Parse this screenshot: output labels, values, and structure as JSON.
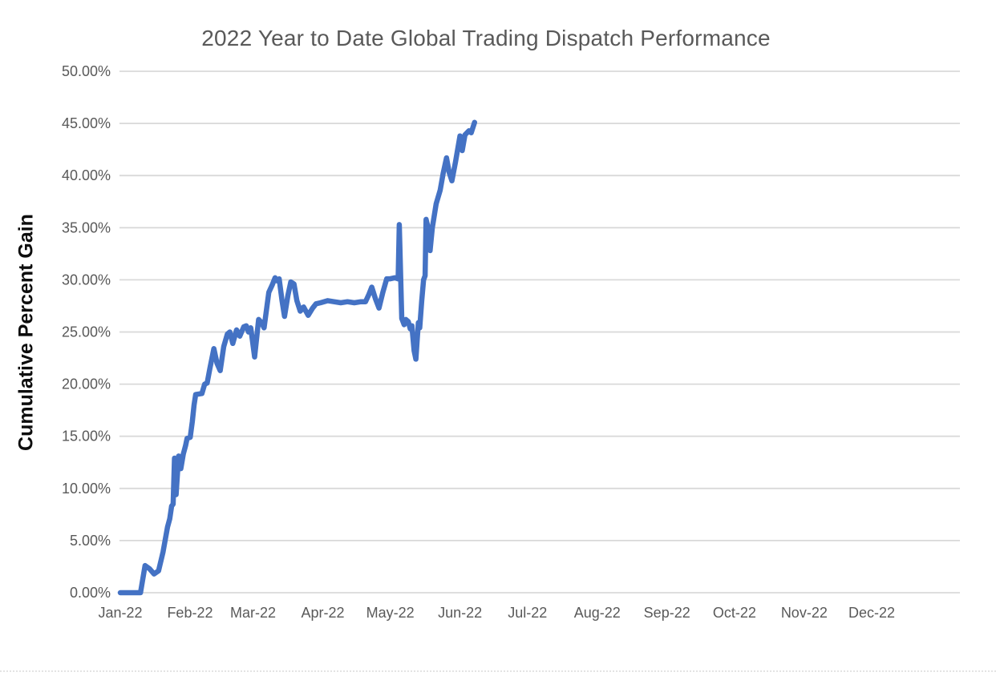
{
  "chart_data": {
    "type": "line",
    "title": "2022 Year to Date Global Trading Dispatch Performance",
    "xlabel": "",
    "ylabel": "Cumulative Percent Gain",
    "x_tick_labels": [
      "Jan-22",
      "Feb-22",
      "Mar-22",
      "Apr-22",
      "May-22",
      "Jun-22",
      "Jul-22",
      "Aug-22",
      "Sep-22",
      "Oct-22",
      "Nov-22",
      "Dec-22"
    ],
    "x_tick_days": [
      0,
      31,
      59,
      90,
      120,
      151,
      181,
      212,
      243,
      273,
      304,
      334
    ],
    "y_tick_labels": [
      "0.00%",
      "5.00%",
      "10.00%",
      "15.00%",
      "20.00%",
      "25.00%",
      "30.00%",
      "35.00%",
      "40.00%",
      "45.00%",
      "50.00%"
    ],
    "y_ticks": [
      0,
      5,
      10,
      15,
      20,
      25,
      30,
      35,
      40,
      45,
      50
    ],
    "ylim": [
      0,
      50
    ],
    "xlim_days": [
      0,
      365
    ],
    "grid": "horizontal",
    "legend": "none",
    "line_color": "#4472C4",
    "grid_color": "#D9D9D9",
    "tick_label_color": "#595959",
    "title_color": "#595959",
    "axis_title_color": "#0d0d0d",
    "series": [
      {
        "x_is_day_of_year_2022": true,
        "points": [
          [
            0,
            0
          ],
          [
            9,
            0
          ],
          [
            11,
            2.6
          ],
          [
            13,
            2.3
          ],
          [
            15,
            1.8
          ],
          [
            17,
            2.1
          ],
          [
            19,
            3.9
          ],
          [
            20,
            5.1
          ],
          [
            21,
            6.3
          ],
          [
            22,
            7.1
          ],
          [
            22.8,
            8.3
          ],
          [
            23.5,
            8.5
          ],
          [
            24.1,
            12.9
          ],
          [
            24.8,
            9.4
          ],
          [
            25.9,
            13.1
          ],
          [
            26.9,
            11.9
          ],
          [
            28,
            13.3
          ],
          [
            29,
            14.1
          ],
          [
            29.7,
            14.8
          ],
          [
            31.1,
            14.9
          ],
          [
            32,
            16.4
          ],
          [
            32.8,
            18
          ],
          [
            33.5,
            19
          ],
          [
            36.3,
            19.1
          ],
          [
            37.5,
            20
          ],
          [
            38.6,
            20.1
          ],
          [
            39.8,
            21.5
          ],
          [
            41.6,
            23.4
          ],
          [
            43,
            22
          ],
          [
            44.4,
            21.3
          ],
          [
            46,
            23.6
          ],
          [
            47.6,
            24.8
          ],
          [
            48.7,
            25
          ],
          [
            50,
            23.9
          ],
          [
            51.7,
            25.2
          ],
          [
            53.1,
            24.6
          ],
          [
            54.9,
            25.5
          ],
          [
            56,
            25.6
          ],
          [
            57,
            25
          ],
          [
            58,
            25.4
          ],
          [
            59.7,
            22.6
          ],
          [
            61.5,
            26.2
          ],
          [
            62.8,
            25.9
          ],
          [
            63.9,
            25.4
          ],
          [
            66,
            28.8
          ],
          [
            67.5,
            29.5
          ],
          [
            68.8,
            30.2
          ],
          [
            69.8,
            29.9
          ],
          [
            70.6,
            30.1
          ],
          [
            71.9,
            28
          ],
          [
            73,
            26.5
          ],
          [
            74.5,
            28.5
          ],
          [
            75.8,
            29.8
          ],
          [
            77.2,
            29.6
          ],
          [
            78.5,
            28
          ],
          [
            80,
            27
          ],
          [
            81.5,
            27.4
          ],
          [
            83.5,
            26.6
          ],
          [
            85.5,
            27.3
          ],
          [
            87,
            27.7
          ],
          [
            89,
            27.8
          ],
          [
            92.2,
            28
          ],
          [
            95,
            27.9
          ],
          [
            98,
            27.8
          ],
          [
            101,
            27.9
          ],
          [
            104,
            27.8
          ],
          [
            107,
            27.9
          ],
          [
            109,
            27.9
          ],
          [
            110.5,
            28.6
          ],
          [
            111.8,
            29.3
          ],
          [
            113.4,
            28.2
          ],
          [
            115,
            27.3
          ],
          [
            116.7,
            28.8
          ],
          [
            118.4,
            30.1
          ],
          [
            120,
            30.1
          ],
          [
            122,
            30.2
          ],
          [
            123.5,
            30.1
          ],
          [
            124,
            35.3
          ],
          [
            125.1,
            26.3
          ],
          [
            126.2,
            25.7
          ],
          [
            126.9,
            26.2
          ],
          [
            128,
            26
          ],
          [
            128.9,
            25.3
          ],
          [
            129.6,
            25.6
          ],
          [
            130.6,
            23.2
          ],
          [
            131.4,
            22.4
          ],
          [
            131.9,
            24
          ],
          [
            132.5,
            25.9
          ],
          [
            133.1,
            25.4
          ],
          [
            134,
            28
          ],
          [
            134.8,
            30
          ],
          [
            135.5,
            30.4
          ],
          [
            135.9,
            35.8
          ],
          [
            136.6,
            35.2
          ],
          [
            137.7,
            32.8
          ],
          [
            138.7,
            35
          ],
          [
            140.4,
            37.3
          ],
          [
            142.2,
            38.6
          ],
          [
            143.5,
            40.2
          ],
          [
            145,
            41.7
          ],
          [
            146.2,
            40.3
          ],
          [
            147.4,
            39.5
          ],
          [
            149,
            41.3
          ],
          [
            151,
            43.8
          ],
          [
            152,
            42.4
          ],
          [
            153.2,
            43.9
          ],
          [
            155,
            44.3
          ],
          [
            156,
            44.1
          ],
          [
            157.5,
            45.1
          ]
        ]
      }
    ]
  }
}
